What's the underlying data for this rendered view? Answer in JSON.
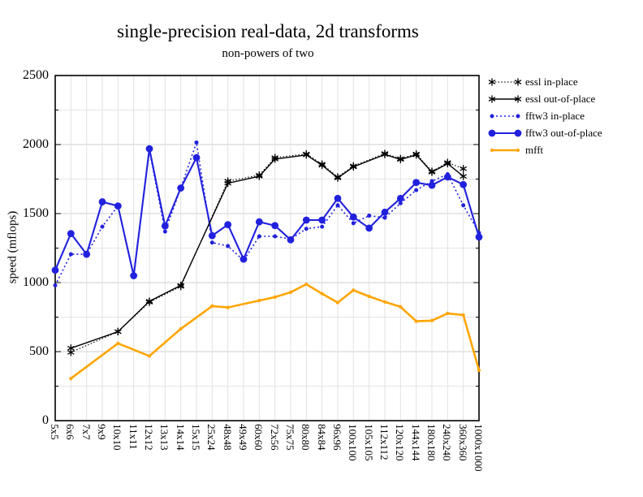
{
  "title": "single-precision real-data, 2d transforms",
  "subtitle": "non-powers of two",
  "chart_data": {
    "type": "line",
    "title": "single-precision real-data, 2d transforms",
    "subtitle": "non-powers of two",
    "xlabel": "",
    "ylabel": "speed (mflops)",
    "ylim": [
      0,
      2500
    ],
    "y_major_ticks": [
      0,
      500,
      1000,
      1500,
      2000,
      2500
    ],
    "y_minor_step": 250,
    "grid": "on",
    "legend_position": "outside-top-right",
    "categories": [
      "5x5",
      "6x6",
      "7x7",
      "9x9",
      "10x10",
      "11x11",
      "12x12",
      "13x13",
      "14x14",
      "15x15",
      "25x24",
      "48x48",
      "49x49",
      "60x60",
      "72x56",
      "75x75",
      "80x80",
      "84x84",
      "96x96",
      "100x100",
      "105x105",
      "112x112",
      "120x120",
      "144x144",
      "180x180",
      "240x240",
      "360x360",
      "1000x1000"
    ],
    "series": [
      {
        "name": "fftw3 in-place",
        "color": "#2121dd",
        "line": "dotted",
        "marker": "dot-small",
        "values": [
          980,
          1205,
          1205,
          1405,
          1555,
          1045,
          1960,
          1370,
          1685,
          2015,
          1290,
          1265,
          1160,
          1335,
          1335,
          1315,
          1390,
          1405,
          1560,
          1430,
          1485,
          1470,
          1575,
          1670,
          1735,
          1785,
          1560,
          1360
        ]
      },
      {
        "name": "fftw3 out-of-place",
        "color": "#2121dd",
        "line": "solid",
        "marker": "dot-large",
        "values": [
          1090,
          1355,
          1205,
          1585,
          1555,
          1050,
          1970,
          1410,
          1685,
          1905,
          1340,
          1420,
          1170,
          1440,
          1413,
          1310,
          1453,
          1453,
          1610,
          1475,
          1395,
          1510,
          1610,
          1725,
          1705,
          1765,
          1710,
          1330
        ]
      },
      {
        "name": "essl in-place",
        "color": "#000000",
        "line": "dotted",
        "marker": "asterisk",
        "values": [
          null,
          495,
          null,
          null,
          645,
          null,
          858,
          null,
          972,
          null,
          null,
          1735,
          null,
          1778,
          1905,
          null,
          1932,
          1858,
          1765,
          1845,
          null,
          1935,
          1898,
          1932,
          1806,
          1870,
          1825,
          null
        ]
      },
      {
        "name": "essl out-of-place",
        "color": "#000000",
        "line": "solid",
        "marker": "asterisk",
        "values": [
          null,
          525,
          null,
          null,
          645,
          null,
          865,
          null,
          980,
          null,
          null,
          1720,
          null,
          1770,
          1895,
          null,
          1925,
          1850,
          1758,
          1838,
          null,
          1928,
          1892,
          1925,
          1800,
          1862,
          1770,
          null
        ]
      },
      {
        "name": "mfft",
        "color": "#ffa500",
        "line": "solid",
        "marker": "dot-tiny",
        "values": [
          null,
          305,
          null,
          null,
          560,
          null,
          468,
          null,
          665,
          null,
          830,
          820,
          null,
          870,
          895,
          930,
          988,
          920,
          855,
          945,
          900,
          860,
          825,
          720,
          725,
          777,
          765,
          365
        ]
      }
    ],
    "legend_order": [
      "essl in-place",
      "essl out-of-place",
      "fftw3 in-place",
      "fftw3 out-of-place",
      "mfft"
    ]
  }
}
